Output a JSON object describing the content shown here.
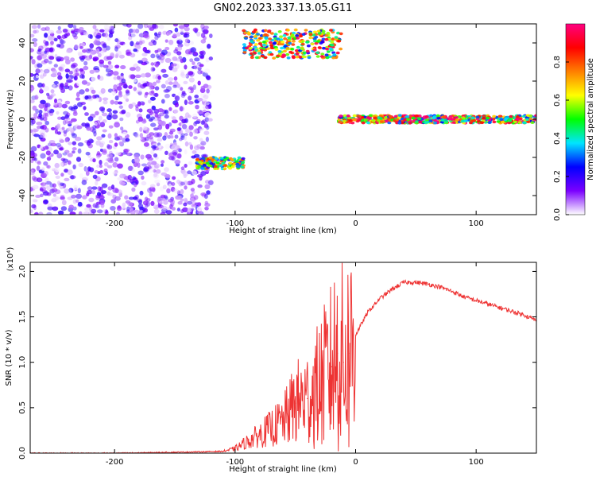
{
  "title": "GN02.2023.337.13.05.G11",
  "chart_data": [
    {
      "type": "heatmap",
      "xlabel": "Height of straight line (km)",
      "ylabel": "Frequency (Hz)",
      "xlim": [
        -270,
        150
      ],
      "ylim": [
        -50,
        50
      ],
      "x_ticks": [
        -200,
        -100,
        0,
        100
      ],
      "y_ticks": [
        -40,
        -20,
        0,
        20,
        40
      ],
      "colorbar": {
        "label": "Normalized spectral amplitude",
        "range": [
          0,
          1
        ],
        "ticks": [
          "0.0",
          "0.2",
          "0.4",
          "0.6",
          "0.8"
        ],
        "colormap": [
          "#ffffff",
          "#7b00ff",
          "#0000ff",
          "#00e5ff",
          "#00ff00",
          "#ffff00",
          "#ff7f00",
          "#ff0000",
          "#ff0080"
        ]
      },
      "features": [
        {
          "x": [
            -270,
            -120
          ],
          "y": [
            -50,
            50
          ],
          "amplitude": 0.1
        },
        {
          "x": [
            -132,
            -93
          ],
          "y": [
            -26,
            -20
          ],
          "amplitude": 0.6
        },
        {
          "x": [
            -93,
            -12
          ],
          "y": [
            32,
            47
          ],
          "amplitude": 0.7
        },
        {
          "x": [
            -14,
            150
          ],
          "y": [
            -2,
            2
          ],
          "amplitude": 0.8
        }
      ]
    },
    {
      "type": "line",
      "xlabel": "Height of straight line (km)",
      "ylabel": "SNR (10 * v/v)",
      "y_multiplier": "(x10⁴)",
      "xlim": [
        -270,
        150
      ],
      "ylim": [
        0,
        2.1
      ],
      "x_ticks": [
        -200,
        -100,
        0,
        100
      ],
      "y_ticks": [
        "0.0",
        "0.5",
        "1.0",
        "1.5",
        "2.0"
      ],
      "color": "#ee3333",
      "x": [
        -270,
        -200,
        -150,
        -110,
        -100,
        -80,
        -60,
        -50,
        -40,
        -30,
        -20,
        -15,
        -10,
        -5,
        0,
        10,
        20,
        30,
        40,
        50,
        60,
        70,
        80,
        90,
        100,
        110,
        120,
        130,
        140,
        150
      ],
      "y": [
        0.0,
        0.0,
        0.01,
        0.02,
        0.05,
        0.2,
        0.35,
        0.55,
        0.6,
        0.75,
        0.95,
        1.1,
        1.0,
        1.1,
        1.3,
        1.55,
        1.7,
        1.8,
        1.88,
        1.88,
        1.86,
        1.83,
        1.78,
        1.72,
        1.68,
        1.64,
        1.6,
        1.56,
        1.52,
        1.46
      ]
    }
  ]
}
